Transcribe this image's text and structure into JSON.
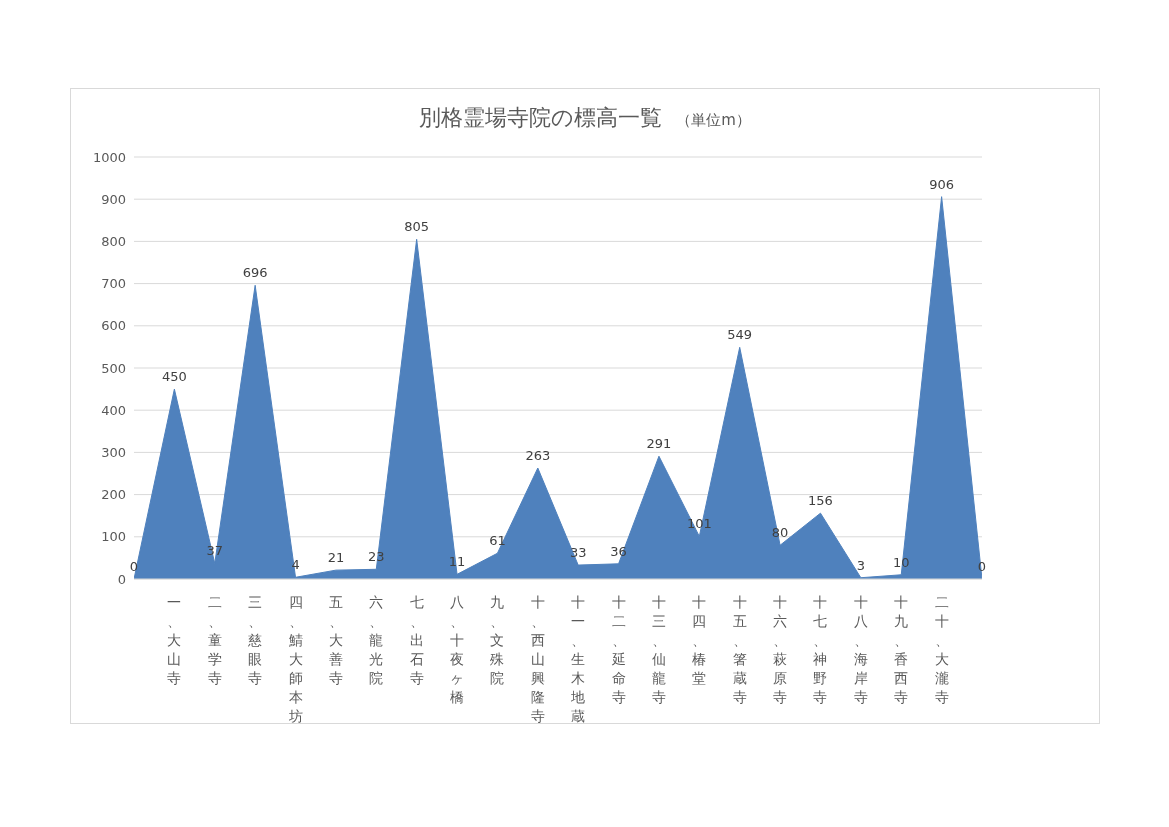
{
  "chart_data": {
    "type": "area",
    "title": "別格霊場寺院の標高一覧",
    "subtitle": "（単位m）",
    "categories": [
      null,
      "一、大山寺",
      "二、童学寺",
      "三、慈眼寺",
      "四、鯖大師本坊",
      "五、大善寺",
      "六、龍光院",
      "七、出石寺",
      "八、十夜ヶ橋",
      "九、文殊院",
      "十、西山興隆寺",
      "十一、生木地蔵",
      "十二、延命寺",
      "十三、仙龍寺",
      "十四、椿堂",
      "十五、箸蔵寺",
      "十六、萩原寺",
      "十七、神野寺",
      "十八、海岸寺",
      "十九、香西寺",
      "二十、大瀧寺",
      null
    ],
    "values": [
      0,
      450,
      37,
      696,
      4,
      21,
      23,
      805,
      11,
      61,
      263,
      33,
      36,
      291,
      101,
      549,
      80,
      156,
      3,
      10,
      906,
      0
    ],
    "color": "#4f81bd",
    "ylim": [
      0,
      1000
    ],
    "yticks": [
      0,
      100,
      200,
      300,
      400,
      500,
      600,
      700,
      800,
      900,
      1000
    ],
    "grid": "y",
    "data_labels": true
  }
}
